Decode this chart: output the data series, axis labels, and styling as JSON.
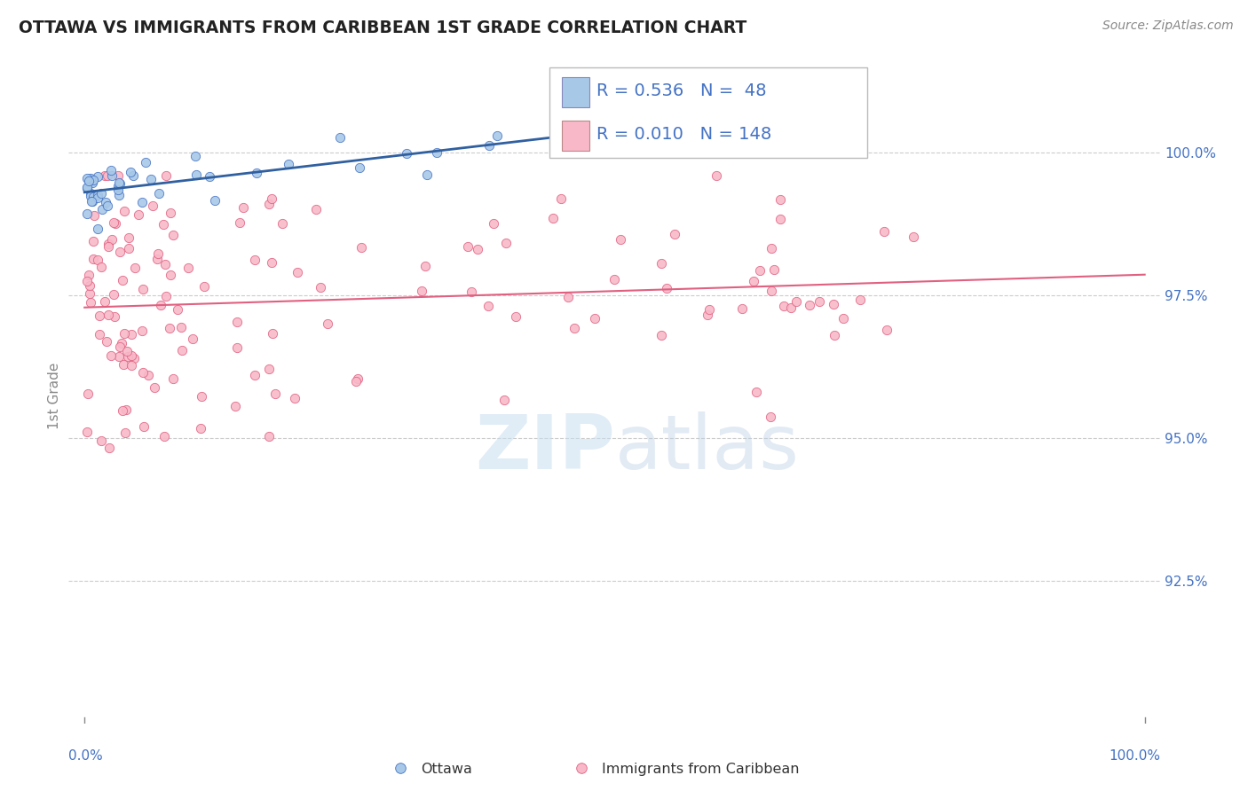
{
  "title": "OTTAWA VS IMMIGRANTS FROM CARIBBEAN 1ST GRADE CORRELATION CHART",
  "source": "Source: ZipAtlas.com",
  "ylabel": "1st Grade",
  "watermark": "ZIPatlas",
  "legend_entries": [
    {
      "label": "Ottawa",
      "R": "0.536",
      "N": "48",
      "color": "#a8c8e8",
      "edge": "#4472c4"
    },
    {
      "label": "Immigrants from Caribbean",
      "R": "0.010",
      "N": "148",
      "color": "#f8b8c8",
      "edge": "#e06080"
    }
  ],
  "ytick_values": [
    100.0,
    97.5,
    95.0,
    92.5
  ],
  "ylim": [
    90.0,
    101.5
  ],
  "xlim": [
    -1.5,
    101.5
  ],
  "blue_color": "#a8c8e8",
  "blue_edge": "#4472c4",
  "blue_line_color": "#3060a0",
  "pink_color": "#f8b8c8",
  "pink_edge": "#e06080",
  "pink_line_color": "#e06080",
  "grid_color": "#cccccc",
  "text_color_blue": "#4472c4",
  "background_color": "#ffffff",
  "title_color": "#222222",
  "source_color": "#888888",
  "ylabel_color": "#888888"
}
